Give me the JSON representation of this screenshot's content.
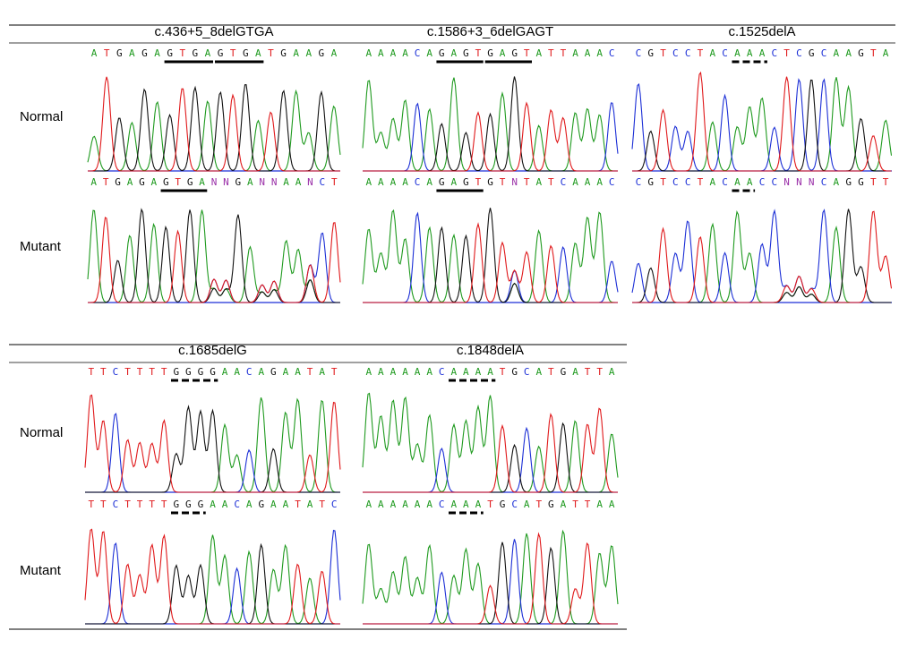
{
  "row_labels": {
    "normal": "Normal",
    "mutant": "Mutant"
  },
  "panels": [
    {
      "title": "c.436+5_8delGTGA",
      "normal": "ATGAGAGTGAGTGATGAAGA",
      "mutant": "ATGAGAGTGANNGANNAANCT"
    },
    {
      "title": "c.1586+3_6delGAGT",
      "normal": "AAAACAGAGTGAGTATTAAAC",
      "mutant": "AAAACAGAGTGTNTATCAAAC"
    },
    {
      "title": "c.1525delA",
      "normal": "CGTCCTACAAACTCGCAAGTA",
      "mutant": "CGTCCTACAACCNNNCAGGTT"
    },
    {
      "title": "c.1685delG",
      "normal": "TTCTTTTGGGGAACAGAATAT",
      "mutant": "TTCTTTTGGGAACAGAATATC"
    },
    {
      "title": "c.1848delA",
      "normal": "AAAAAACAAAATGCATGATTA",
      "mutant": "AAAAAACAAATGCATGATTAA"
    }
  ]
}
